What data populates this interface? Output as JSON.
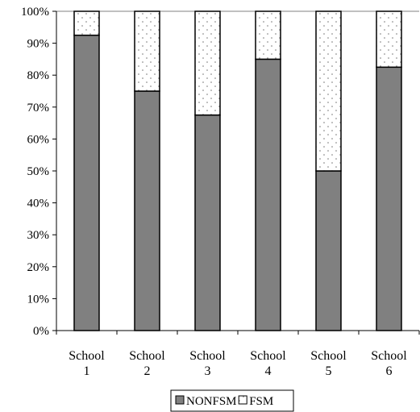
{
  "chart_data": {
    "type": "bar",
    "stacked": true,
    "percent": true,
    "categories": [
      [
        "School",
        "1"
      ],
      [
        "School",
        "2"
      ],
      [
        "School",
        "3"
      ],
      [
        "School",
        "4"
      ],
      [
        "School",
        "5"
      ],
      [
        "School",
        "6"
      ]
    ],
    "series": [
      {
        "name": "NONFSM",
        "values": [
          92.5,
          75,
          67.5,
          85,
          50,
          82.5
        ],
        "color": "#808080",
        "pattern": "solid"
      },
      {
        "name": "FSM",
        "values": [
          7.5,
          25,
          32.5,
          15,
          50,
          17.5
        ],
        "color": "#ffffff",
        "pattern": "dotted"
      }
    ],
    "y_ticks": [
      "0%",
      "10%",
      "20%",
      "30%",
      "40%",
      "50%",
      "60%",
      "70%",
      "80%",
      "90%",
      "100%"
    ],
    "ylim": [
      0,
      100
    ],
    "grid": false,
    "legend": {
      "position": "bottom",
      "items": [
        "NONFSM",
        "FSM"
      ]
    },
    "title": "",
    "xlabel": "",
    "ylabel": ""
  }
}
